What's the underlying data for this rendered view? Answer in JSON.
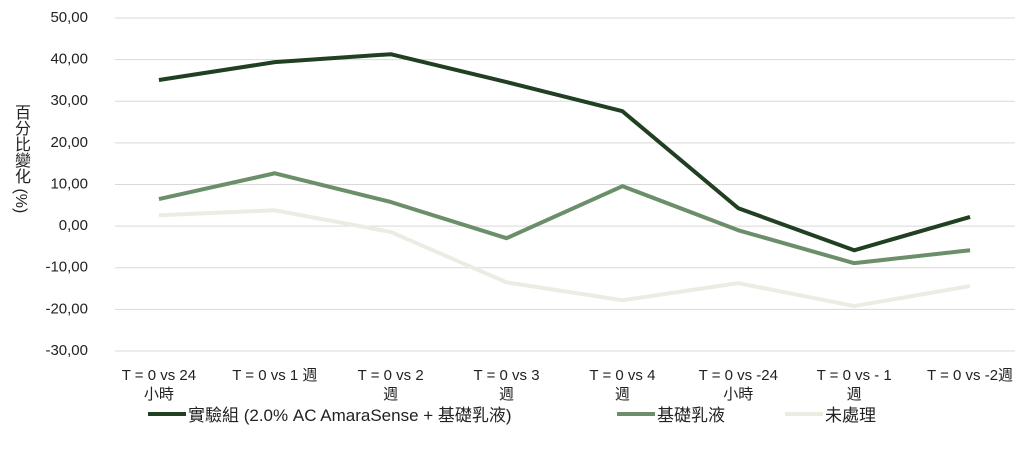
{
  "chart_data": {
    "type": "line",
    "y_label": "百分比變化 (%)",
    "categories": [
      "T = 0 vs 24\n小時",
      "T = 0 vs 1 週",
      "T = 0 vs 2\n週",
      "T = 0 vs 3\n週",
      "T = 0 vs 4\n週",
      "T = 0 vs -24\n小時",
      "T = 0 vs - 1\n週",
      "T = 0 vs -2週"
    ],
    "series": [
      {
        "name": "實驗組 (2.0% AC AmaraSense + 基礎乳液)",
        "color": "#213f21",
        "values": [
          35.1,
          39.4,
          41.3,
          34.6,
          27.6,
          4.3,
          -5.8,
          2.2
        ]
      },
      {
        "name": "基礎乳液",
        "color": "#6b8e6b",
        "values": [
          6.5,
          12.7,
          5.8,
          -2.9,
          9.6,
          -1.0,
          -8.9,
          -5.8
        ]
      },
      {
        "name": "未處理",
        "color": "#ecece3",
        "values": [
          2.6,
          3.8,
          -1.4,
          -13.5,
          -17.8,
          -13.7,
          -19.2,
          -14.4
        ]
      }
    ],
    "ylim": [
      -30,
      50
    ],
    "yticks": [
      {
        "value": -30,
        "label": "-30,00"
      },
      {
        "value": -20,
        "label": "-20,00"
      },
      {
        "value": -10,
        "label": "-10,00"
      },
      {
        "value": 0,
        "label": "0,00"
      },
      {
        "value": 10,
        "label": "10,00"
      },
      {
        "value": 20,
        "label": "20,00"
      },
      {
        "value": 30,
        "label": "30,00"
      },
      {
        "value": 40,
        "label": "40,00"
      },
      {
        "value": 50,
        "label": "50,00"
      }
    ],
    "grid": true,
    "legend": "bottom"
  }
}
